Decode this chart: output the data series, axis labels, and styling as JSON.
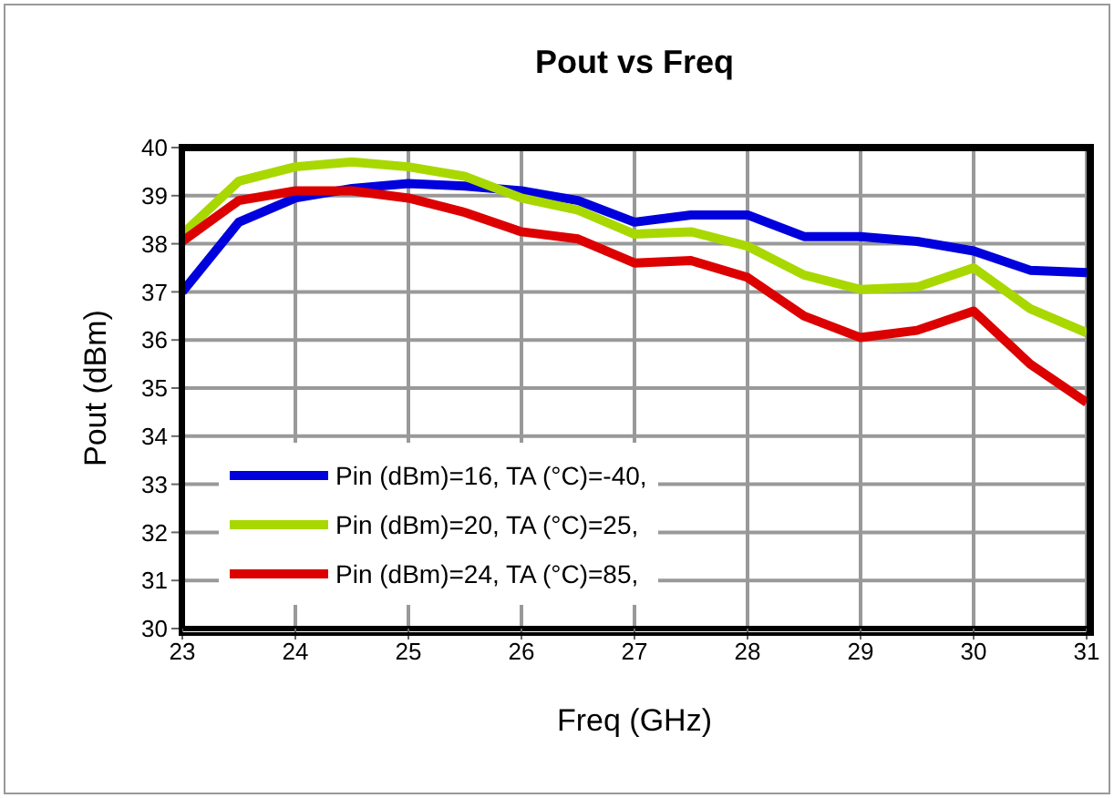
{
  "chart_data": {
    "type": "line",
    "title": "Pout vs Freq",
    "xlabel": "Freq (GHz)",
    "ylabel": "Pout (dBm)",
    "x": [
      23,
      23.5,
      24,
      24.5,
      25,
      25.5,
      26,
      26.5,
      27,
      27.5,
      28,
      28.5,
      29,
      29.5,
      30,
      30.5,
      31
    ],
    "series": [
      {
        "name": "Pin (dBm)=16, TA (°C)=-40,",
        "color": "#0000dd",
        "values": [
          37.0,
          38.45,
          38.95,
          39.15,
          39.25,
          39.2,
          39.1,
          38.9,
          38.45,
          38.6,
          38.6,
          38.15,
          38.15,
          38.05,
          37.85,
          37.45,
          37.4
        ]
      },
      {
        "name": "Pin (dBm)=20, TA (°C)=25,",
        "color": "#a8d800",
        "values": [
          38.2,
          39.3,
          39.6,
          39.7,
          39.6,
          39.4,
          38.95,
          38.7,
          38.2,
          38.25,
          37.95,
          37.35,
          37.05,
          37.1,
          37.5,
          36.65,
          36.15
        ]
      },
      {
        "name": "Pin (dBm)=24, TA (°C)=85,",
        "color": "#dd0000",
        "values": [
          38.05,
          38.9,
          39.1,
          39.1,
          38.95,
          38.65,
          38.25,
          38.1,
          37.6,
          37.65,
          37.3,
          36.5,
          36.05,
          36.2,
          36.6,
          35.5,
          34.7
        ]
      }
    ],
    "xlim": [
      23,
      31
    ],
    "xticks": [
      23,
      24,
      25,
      26,
      27,
      28,
      29,
      30,
      31
    ],
    "ylim": [
      30,
      40
    ],
    "yticks": [
      30,
      31,
      32,
      33,
      34,
      35,
      36,
      37,
      38,
      39,
      40
    ],
    "grid": true,
    "legend": "bottom left",
    "marker": "none",
    "line_style": "solid"
  }
}
